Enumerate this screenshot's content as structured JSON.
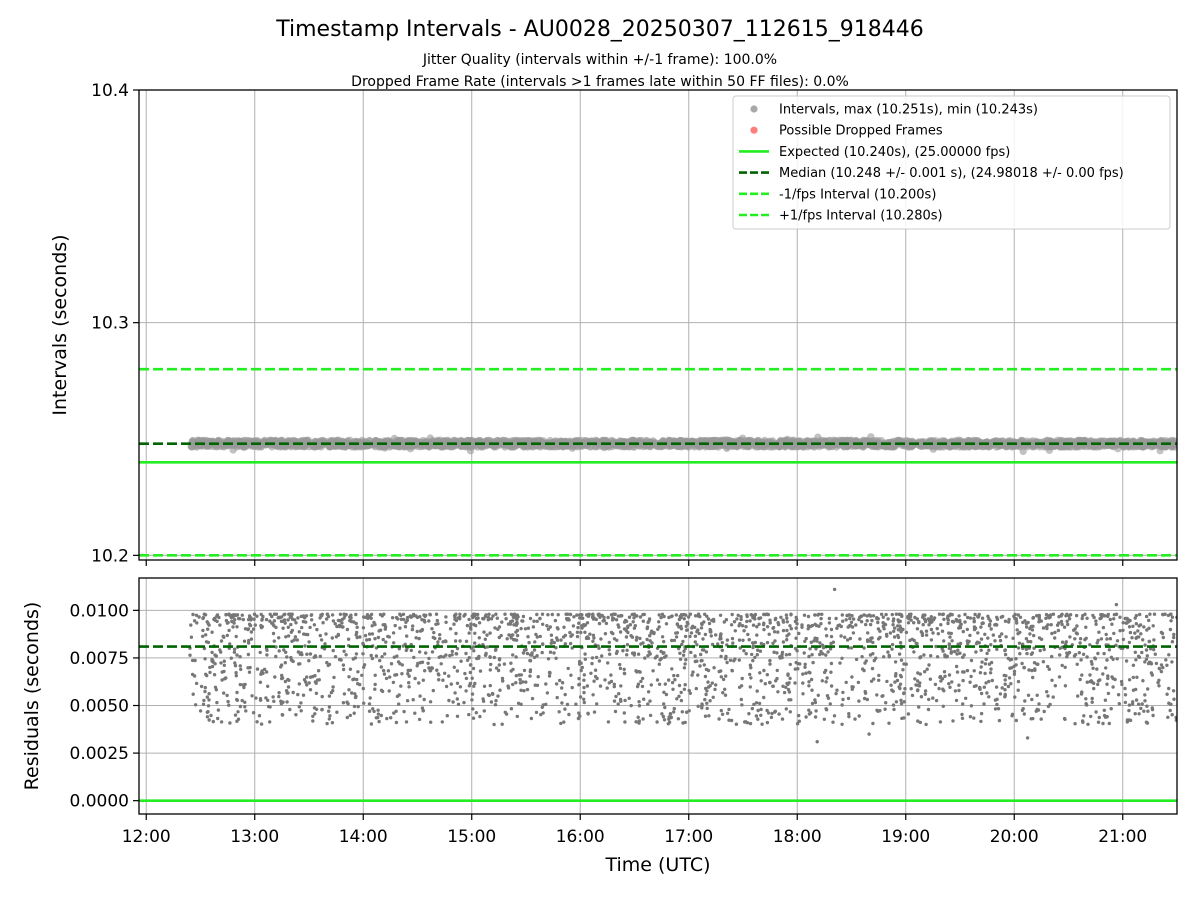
{
  "chart_data": {
    "type": "scatter",
    "title": "Timestamp Intervals - AU0028_20250307_112615_918446",
    "subtitle_lines": [
      "Jitter Quality (intervals within +/-1 frame): 100.0%",
      "Dropped Frame Rate (intervals >1 frames late within 50 FF files): 0.0%"
    ],
    "xlabel": "Time (UTC)",
    "xlim": [
      "11:56",
      "21:30"
    ],
    "x_ticks": [
      "12:00",
      "13:00",
      "14:00",
      "15:00",
      "16:00",
      "17:00",
      "18:00",
      "19:00",
      "20:00",
      "21:00"
    ],
    "data_x_range": [
      "12:24",
      "21:30"
    ],
    "grid": true,
    "legend_location": "top-right",
    "panels": [
      {
        "name": "intervals",
        "ylabel": "Intervals (seconds)",
        "ylim": [
          10.198,
          10.4
        ],
        "y_ticks": [
          "10.2",
          "10.3",
          "10.4"
        ],
        "series": [
          {
            "name": "Intervals, max (10.251s), min (10.243s)",
            "kind": "scatter",
            "color": "#999999",
            "center": 10.248,
            "max": 10.251,
            "min": 10.243
          },
          {
            "name": "Possible Dropped Frames",
            "kind": "scatter",
            "color": "#ff6666",
            "values": []
          },
          {
            "name": "Expected (10.240s), (25.00000 fps)",
            "kind": "hline",
            "y": 10.24,
            "style": "solid",
            "color": "#22ee22"
          },
          {
            "name": "Median (10.248 +/- 0.001 s), (24.98018 +/- 0.00 fps)",
            "kind": "hline",
            "y": 10.248,
            "style": "dashed",
            "color": "#006400"
          },
          {
            "name": "-1/fps Interval (10.200s)",
            "kind": "hline",
            "y": 10.2,
            "style": "dashed",
            "color": "#22ee22"
          },
          {
            "name": "+1/fps Interval (10.280s)",
            "kind": "hline",
            "y": 10.28,
            "style": "dashed",
            "color": "#22ee22"
          }
        ]
      },
      {
        "name": "residuals",
        "ylabel": "Residuals (seconds)",
        "ylim": [
          -0.0007,
          0.0117
        ],
        "y_ticks": [
          "0.0000",
          "0.0025",
          "0.0050",
          "0.0075",
          "0.0100"
        ],
        "series": [
          {
            "name": "Residuals",
            "kind": "scatter",
            "color": "#777777",
            "band": [
              0.004,
              0.0098
            ],
            "outliers": [
              0.0031,
              0.0033,
              0.0035,
              0.0103,
              0.0111
            ]
          },
          {
            "name": "Median residual",
            "kind": "hline",
            "y": 0.0081,
            "style": "dashed",
            "color": "#006400"
          },
          {
            "name": "Zero",
            "kind": "hline",
            "y": 0,
            "style": "solid",
            "color": "#22ee22"
          }
        ]
      }
    ]
  }
}
